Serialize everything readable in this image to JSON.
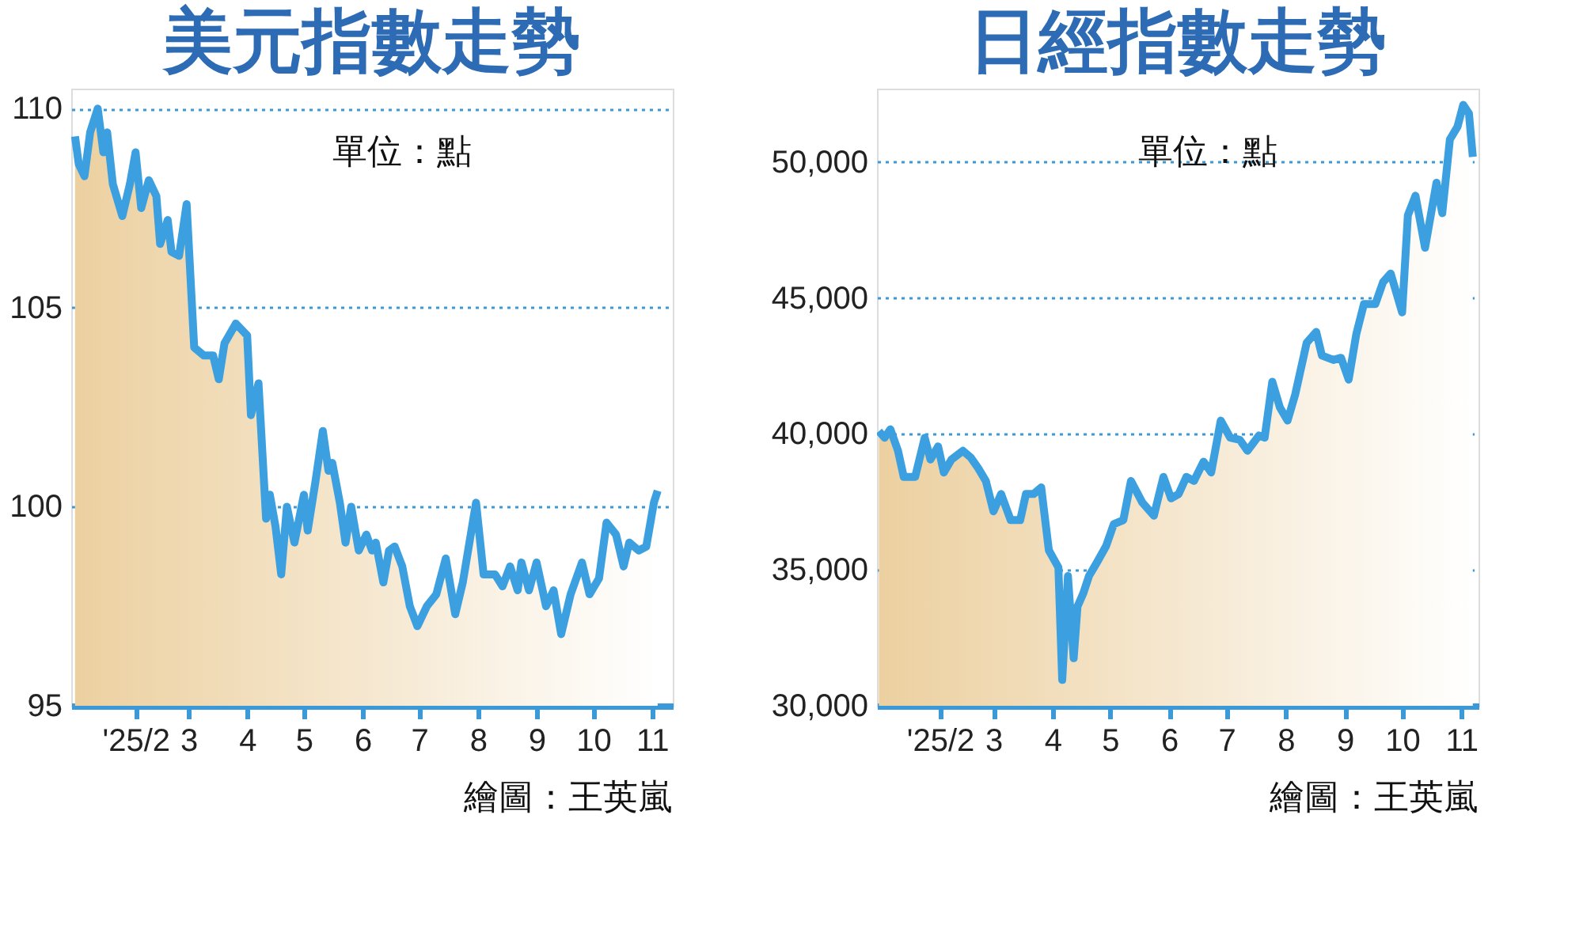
{
  "chart_data": [
    {
      "type": "area",
      "title": "美元指數走勢",
      "annotations": [
        "單位：點",
        "繪圖：王英嵐"
      ],
      "x": [
        "2024-12-31",
        "2025-01-02",
        "2025-01-05",
        "2025-01-08",
        "2025-01-12",
        "2025-01-15",
        "2025-01-17",
        "2025-01-20",
        "2025-01-25",
        "2025-01-29",
        "2025-02-01",
        "2025-02-04",
        "2025-02-08",
        "2025-02-12",
        "2025-02-14",
        "2025-02-18",
        "2025-02-20",
        "2025-02-24",
        "2025-02-28",
        "2025-03-04",
        "2025-03-09",
        "2025-03-14",
        "2025-03-17",
        "2025-03-20",
        "2025-03-26",
        "2025-04-01",
        "2025-04-03",
        "2025-04-07",
        "2025-04-11",
        "2025-04-13",
        "2025-04-16",
        "2025-04-19",
        "2025-04-22",
        "2025-04-26",
        "2025-05-01",
        "2025-05-03",
        "2025-05-07",
        "2025-05-11",
        "2025-05-14",
        "2025-05-16",
        "2025-05-20",
        "2025-05-23",
        "2025-05-26",
        "2025-05-30",
        "2025-06-03",
        "2025-06-06",
        "2025-06-08",
        "2025-06-12",
        "2025-06-15",
        "2025-06-18",
        "2025-06-22",
        "2025-06-26",
        "2025-06-30",
        "2025-07-05",
        "2025-07-10",
        "2025-07-15",
        "2025-07-20",
        "2025-07-24",
        "2025-07-31",
        "2025-08-04",
        "2025-08-10",
        "2025-08-14",
        "2025-08-18",
        "2025-08-22",
        "2025-08-24",
        "2025-08-28",
        "2025-09-01",
        "2025-09-06",
        "2025-09-10",
        "2025-09-14",
        "2025-09-19",
        "2025-09-25",
        "2025-09-29",
        "2025-10-04",
        "2025-10-08",
        "2025-10-13",
        "2025-10-17",
        "2025-10-20",
        "2025-10-25",
        "2025-10-29",
        "2025-11-02",
        "2025-11-04"
      ],
      "series": [
        {
          "color": "#3ca0e0",
          "values": [
            109.3,
            108.6,
            108.3,
            109.4,
            110.0,
            108.9,
            109.4,
            108.1,
            107.3,
            108.1,
            108.9,
            107.5,
            108.2,
            107.8,
            106.6,
            107.2,
            106.4,
            106.3,
            107.6,
            104.0,
            103.8,
            103.8,
            103.2,
            104.1,
            104.6,
            104.3,
            102.3,
            103.1,
            99.7,
            100.3,
            99.5,
            98.3,
            100.0,
            99.1,
            100.3,
            99.4,
            100.6,
            101.9,
            100.9,
            101.1,
            100.1,
            99.1,
            100.0,
            98.9,
            99.3,
            98.9,
            99.1,
            98.1,
            98.9,
            99.0,
            98.5,
            97.5,
            97.0,
            97.5,
            97.8,
            98.7,
            97.3,
            98.1,
            100.1,
            98.3,
            98.3,
            98.0,
            98.5,
            97.9,
            98.6,
            97.9,
            98.6,
            97.5,
            97.9,
            96.8,
            97.8,
            98.6,
            97.8,
            98.2,
            99.6,
            99.3,
            98.5,
            99.1,
            98.9,
            99.0,
            100.1,
            100.4
          ]
        }
      ],
      "xlim": [
        "2024-12-29",
        "2025-11-12"
      ],
      "xticks": [
        {
          "value": "2025-02-01",
          "label": "'25/2"
        },
        {
          "value": "2025-03-01",
          "label": "3"
        },
        {
          "value": "2025-04-01",
          "label": "4"
        },
        {
          "value": "2025-05-01",
          "label": "5"
        },
        {
          "value": "2025-06-01",
          "label": "6"
        },
        {
          "value": "2025-07-01",
          "label": "7"
        },
        {
          "value": "2025-08-01",
          "label": "8"
        },
        {
          "value": "2025-09-01",
          "label": "9"
        },
        {
          "value": "2025-10-01",
          "label": "10"
        },
        {
          "value": "2025-11-01",
          "label": "11"
        }
      ],
      "ylim": [
        95,
        110.5
      ],
      "yticks": [
        95,
        100,
        105,
        110
      ],
      "grid": "y"
    },
    {
      "type": "area",
      "title": "日經指數走勢",
      "annotations": [
        "單位：點",
        "繪圖：王英嵐"
      ],
      "x": [
        "2024-12-31",
        "2025-01-03",
        "2025-01-06",
        "2025-01-10",
        "2025-01-13",
        "2025-01-19",
        "2025-01-24",
        "2025-01-27",
        "2025-01-31",
        "2025-02-03",
        "2025-02-07",
        "2025-02-13",
        "2025-02-17",
        "2025-02-21",
        "2025-02-25",
        "2025-03-01",
        "2025-03-05",
        "2025-03-10",
        "2025-03-15",
        "2025-03-18",
        "2025-03-22",
        "2025-03-26",
        "2025-03-30",
        "2025-04-04",
        "2025-04-06",
        "2025-04-09",
        "2025-04-12",
        "2025-04-14",
        "2025-04-17",
        "2025-04-20",
        "2025-04-24",
        "2025-04-29",
        "2025-05-03",
        "2025-05-08",
        "2025-05-12",
        "2025-05-18",
        "2025-05-24",
        "2025-05-29",
        "2025-06-02",
        "2025-06-06",
        "2025-06-10",
        "2025-06-14",
        "2025-06-19",
        "2025-06-23",
        "2025-06-28",
        "2025-07-03",
        "2025-07-08",
        "2025-07-12",
        "2025-07-18",
        "2025-07-21",
        "2025-07-25",
        "2025-07-29",
        "2025-08-02",
        "2025-08-06",
        "2025-08-12",
        "2025-08-17",
        "2025-08-20",
        "2025-08-26",
        "2025-08-30",
        "2025-09-03",
        "2025-09-07",
        "2025-09-11",
        "2025-09-17",
        "2025-09-21",
        "2025-09-25",
        "2025-10-01",
        "2025-10-04",
        "2025-10-08",
        "2025-10-13",
        "2025-10-19",
        "2025-10-22",
        "2025-10-26",
        "2025-10-30",
        "2025-11-02",
        "2025-11-05",
        "2025-11-07"
      ],
      "series": [
        {
          "color": "#3ca0e0",
          "values": [
            40100,
            39860,
            40170,
            39380,
            38420,
            38420,
            39860,
            39060,
            39540,
            38580,
            39060,
            39380,
            39140,
            38740,
            38270,
            37150,
            37790,
            36830,
            36830,
            37790,
            37790,
            38030,
            35720,
            35090,
            30950,
            34770,
            31750,
            33650,
            34130,
            34770,
            35250,
            35880,
            36680,
            36830,
            38270,
            37470,
            36990,
            38420,
            37630,
            37790,
            38420,
            38270,
            38980,
            38580,
            40490,
            39860,
            39780,
            39380,
            39940,
            39860,
            41920,
            40970,
            40490,
            41450,
            43350,
            43750,
            42880,
            42720,
            42800,
            42000,
            43670,
            44780,
            44780,
            45580,
            45900,
            44470,
            48040,
            48760,
            46850,
            49240,
            48120,
            50830,
            51300,
            52100,
            51780,
            50190
          ]
        }
      ],
      "xlim": [
        "2024-12-30",
        "2025-11-10"
      ],
      "xticks": [
        {
          "value": "2025-02-01",
          "label": "'25/2"
        },
        {
          "value": "2025-03-01",
          "label": "3"
        },
        {
          "value": "2025-04-01",
          "label": "4"
        },
        {
          "value": "2025-05-01",
          "label": "5"
        },
        {
          "value": "2025-06-01",
          "label": "6"
        },
        {
          "value": "2025-07-01",
          "label": "7"
        },
        {
          "value": "2025-08-01",
          "label": "8"
        },
        {
          "value": "2025-09-01",
          "label": "9"
        },
        {
          "value": "2025-10-01",
          "label": "10"
        },
        {
          "value": "2025-11-01",
          "label": "11"
        }
      ],
      "ylim": [
        30000,
        52700
      ],
      "yticks": [
        {
          "value": 30000,
          "label": "30,000"
        },
        {
          "value": 35000,
          "label": "35,000"
        },
        {
          "value": 40000,
          "label": "40,000"
        },
        {
          "value": 45000,
          "label": "45,000"
        },
        {
          "value": 50000,
          "label": "50,000"
        }
      ],
      "grid": "y"
    }
  ]
}
